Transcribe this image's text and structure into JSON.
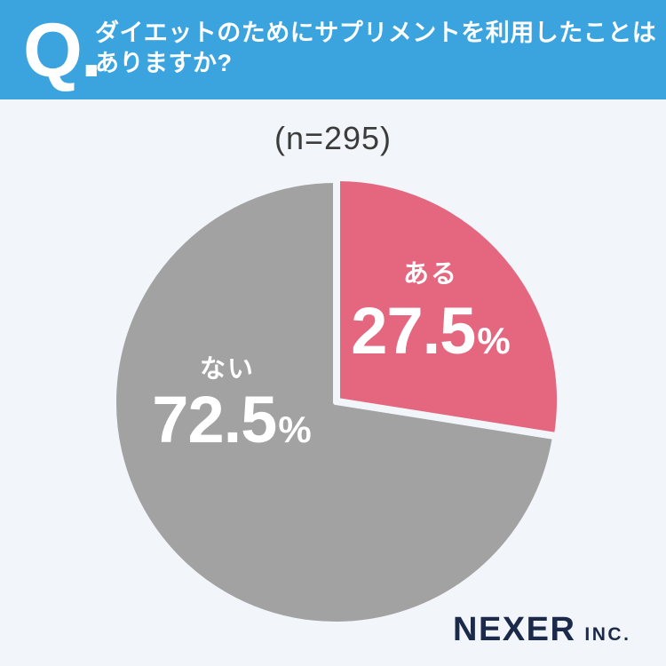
{
  "header": {
    "q_label": "Q.",
    "question_line1": "ダイエットのためにサプリメントを利用したことは",
    "question_line2": "ありますか?"
  },
  "chart_data": {
    "type": "pie",
    "title": "ダイエットのためにサプリメントを利用したことはありますか?",
    "sample_label": "(n=295)",
    "sample_size": 295,
    "categories": [
      "ある",
      "ない"
    ],
    "values": [
      27.5,
      72.5
    ],
    "unit": "%",
    "start_angle_deg": 0,
    "direction": "clockwise",
    "legend": "none",
    "label_color": "#FFFFFF",
    "slices": [
      {
        "label": "ある",
        "value": "27.5",
        "unit": "%",
        "color": "#E4677F"
      },
      {
        "label": "ない",
        "value": "72.5",
        "unit": "%",
        "color": "#A2A2A2"
      }
    ]
  },
  "footer": {
    "brand_name": "NEXER",
    "brand_suffix": "INC."
  },
  "colors": {
    "header_bg": "#3BA4DF",
    "background": "#F2F5FA",
    "slice_pink": "#E4677F",
    "slice_gray": "#A2A2A2",
    "brand_navy": "#1B2A4A",
    "sample_text": "#3C3C3C"
  }
}
